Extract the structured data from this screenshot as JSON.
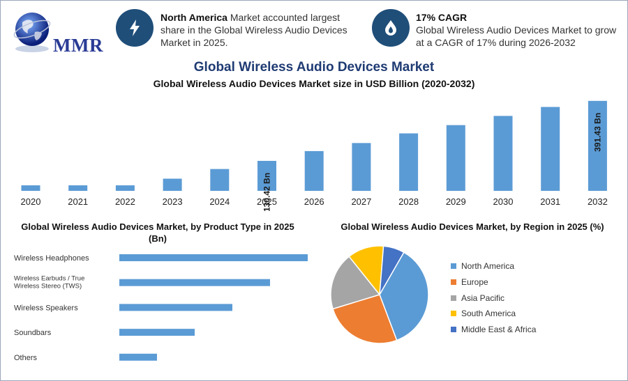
{
  "logo": {
    "text": "MMR",
    "icon": "globe-icon"
  },
  "highlights": [
    {
      "icon": "lightning-icon",
      "bold": "North America",
      "text": " Market accounted largest share in the Global Wireless Audio Devices Market in 2025."
    },
    {
      "icon": "flame-drop-icon",
      "title": "17% CAGR",
      "text": "Global Wireless Audio Devices Market to grow at a CAGR of 17% during 2026-2032"
    }
  ],
  "chart_data": [
    {
      "type": "bar",
      "title": "Global Wireless Audio Devices Market",
      "subtitle": "Global Wireless Audio Devices Market size in USD Billion (2020-2032)",
      "categories": [
        "2020",
        "2021",
        "2022",
        "2023",
        "2024",
        "2025",
        "2026",
        "2027",
        "2028",
        "2029",
        "2030",
        "2031",
        "2032"
      ],
      "values": [
        24,
        24,
        24,
        53,
        95,
        130.42,
        173,
        208,
        250,
        286,
        326,
        365,
        391.43
      ],
      "data_labels": {
        "2025": "130.42 Bn",
        "2032": "391.43 Bn"
      },
      "color": "#5b9bd5",
      "ylim": [
        0,
        400
      ]
    },
    {
      "type": "bar",
      "orientation": "horizontal",
      "title": "Global Wireless Audio Devices Market, by Product Type in 2025 (Bn)",
      "categories": [
        "Wireless Headphones",
        "Wireless Earbuds / True Wireless Stereo (TWS)",
        "Wireless Speakers",
        "Soundbars",
        "Others"
      ],
      "values": [
        45,
        36,
        27,
        18,
        9
      ],
      "color": "#5b9bd5"
    },
    {
      "type": "pie",
      "title": "Global Wireless Audio Devices Market, by Region in 2025 (%)",
      "categories": [
        "North America",
        "Europe",
        "Asia Pacific",
        "South America",
        "Middle East & Africa"
      ],
      "values": [
        36,
        26,
        19,
        12,
        7
      ],
      "colors": [
        "#5b9bd5",
        "#ed7d31",
        "#a5a5a5",
        "#ffc000",
        "#4472c4"
      ],
      "legend": "right"
    }
  ]
}
